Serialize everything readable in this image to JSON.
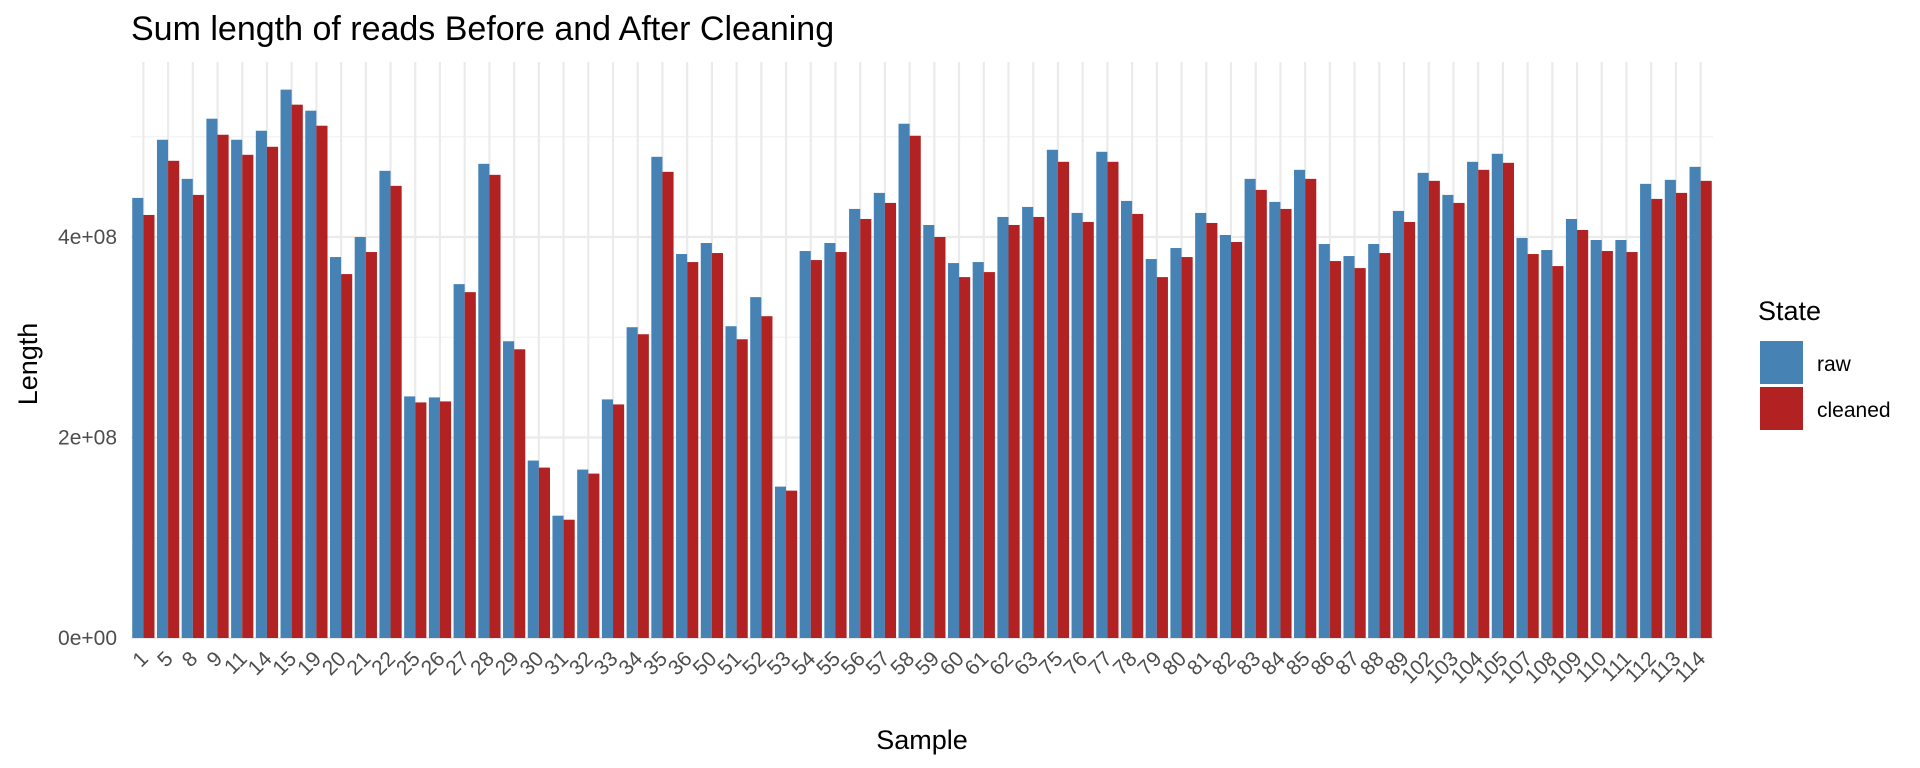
{
  "chart_data": {
    "type": "bar",
    "title": "Sum length of reads Before and After Cleaning",
    "xlabel": "Sample",
    "ylabel": "Length",
    "legend_title": "State",
    "legend_position": "right",
    "grid": true,
    "ylim": [
      0,
      550000000
    ],
    "y_ticks": [
      0,
      200000000,
      400000000
    ],
    "y_tick_labels": [
      "0e+00",
      "2e+08",
      "4e+08"
    ],
    "categories": [
      "1",
      "5",
      "8",
      "9",
      "11",
      "14",
      "15",
      "19",
      "20",
      "21",
      "22",
      "25",
      "26",
      "27",
      "28",
      "29",
      "30",
      "31",
      "32",
      "33",
      "34",
      "35",
      "36",
      "50",
      "51",
      "52",
      "53",
      "54",
      "55",
      "56",
      "57",
      "58",
      "59",
      "60",
      "61",
      "62",
      "63",
      "75",
      "76",
      "77",
      "78",
      "79",
      "80",
      "81",
      "82",
      "83",
      "84",
      "85",
      "86",
      "87",
      "88",
      "89",
      "102",
      "103",
      "104",
      "105",
      "107",
      "108",
      "109",
      "110",
      "111",
      "112",
      "113",
      "114"
    ],
    "series": [
      {
        "name": "raw",
        "color": "#4682b4",
        "values": [
          439000000,
          497000000,
          458000000,
          518000000,
          497000000,
          506000000,
          547000000,
          526000000,
          380000000,
          400000000,
          466000000,
          241000000,
          240000000,
          353000000,
          473000000,
          296000000,
          177000000,
          122000000,
          168000000,
          238000000,
          310000000,
          480000000,
          383000000,
          394000000,
          311000000,
          340000000,
          151000000,
          386000000,
          394000000,
          428000000,
          444000000,
          513000000,
          412000000,
          374000000,
          375000000,
          420000000,
          430000000,
          487000000,
          424000000,
          485000000,
          436000000,
          378000000,
          389000000,
          424000000,
          402000000,
          458000000,
          435000000,
          467000000,
          393000000,
          381000000,
          393000000,
          426000000,
          464000000,
          442000000,
          475000000,
          483000000,
          399000000,
          387000000,
          418000000,
          397000000,
          397000000,
          453000000,
          457000000,
          470000000
        ]
      },
      {
        "name": "cleaned",
        "color": "#b22222",
        "values": [
          422000000,
          476000000,
          442000000,
          502000000,
          482000000,
          490000000,
          532000000,
          511000000,
          363000000,
          385000000,
          451000000,
          235000000,
          236000000,
          345000000,
          462000000,
          288000000,
          170000000,
          118000000,
          164000000,
          233000000,
          303000000,
          465000000,
          375000000,
          384000000,
          298000000,
          321000000,
          147000000,
          377000000,
          385000000,
          418000000,
          434000000,
          501000000,
          400000000,
          360000000,
          365000000,
          412000000,
          420000000,
          475000000,
          415000000,
          475000000,
          423000000,
          360000000,
          380000000,
          414000000,
          395000000,
          447000000,
          428000000,
          458000000,
          376000000,
          369000000,
          384000000,
          415000000,
          456000000,
          434000000,
          467000000,
          474000000,
          383000000,
          371000000,
          407000000,
          386000000,
          385000000,
          438000000,
          444000000,
          456000000
        ]
      }
    ]
  }
}
